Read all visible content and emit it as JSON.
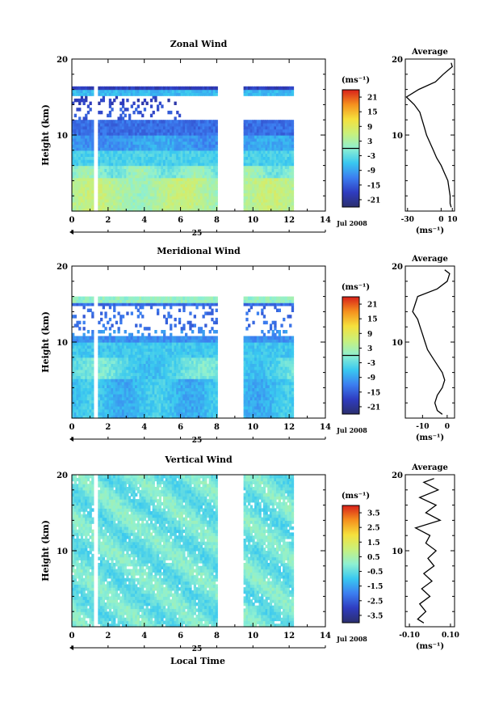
{
  "chart_data": [
    {
      "type": "heatmap",
      "title": "Zonal Wind",
      "ylabel": "Height (km)",
      "ylim": [
        0,
        20
      ],
      "y_ticks": [
        "10",
        "20"
      ],
      "xlim": [
        0,
        14
      ],
      "x_ticks": [
        "0",
        "2",
        "4",
        "6",
        "8",
        "10",
        "12",
        "14"
      ],
      "date_label": "25",
      "month_year_label": "Jul 2008",
      "colorbar": {
        "unit": "(ms⁻¹)",
        "ticks": [
          "21",
          "15",
          "9",
          "3",
          "-3",
          "-9",
          "-15",
          "-21"
        ],
        "range": [
          -24,
          24
        ]
      },
      "average_panel": {
        "title": "Average",
        "xlabel": "(ms⁻¹)",
        "x_ticks": [
          "-30",
          "0",
          "10"
        ],
        "xlim": [
          -32,
          12
        ],
        "y_ticks": [
          "10",
          "20"
        ],
        "profile_height": [
          0.5,
          1,
          2,
          3,
          4,
          5,
          6,
          7,
          8,
          9,
          10,
          11,
          12,
          13,
          14,
          15,
          16,
          17,
          18,
          19,
          19.5
        ],
        "profile_value": [
          9,
          8,
          8,
          7,
          6,
          3,
          0,
          -4,
          -7,
          -10,
          -13,
          -15,
          -17,
          -19,
          -24,
          -31,
          -20,
          -5,
          2,
          10,
          9
        ]
      }
    },
    {
      "type": "heatmap",
      "title": "Meridional Wind",
      "ylabel": "Height (km)",
      "ylim": [
        0,
        20
      ],
      "y_ticks": [
        "10",
        "20"
      ],
      "xlim": [
        0,
        14
      ],
      "x_ticks": [
        "0",
        "2",
        "4",
        "6",
        "8",
        "10",
        "12",
        "14"
      ],
      "date_label": "25",
      "month_year_label": "Jul 2008",
      "colorbar": {
        "unit": "(ms⁻¹)",
        "ticks": [
          "21",
          "15",
          "9",
          "3",
          "-3",
          "-9",
          "-15",
          "-21"
        ],
        "range": [
          -24,
          24
        ]
      },
      "average_panel": {
        "title": "Average",
        "xlabel": "(ms⁻¹)",
        "x_ticks": [
          "-10",
          "0"
        ],
        "xlim": [
          -17,
          3
        ],
        "y_ticks": [
          "10",
          "20"
        ],
        "profile_height": [
          0.5,
          1,
          2,
          3,
          4,
          5,
          6,
          7,
          8,
          9,
          10,
          11,
          12,
          13,
          14,
          15,
          16,
          17,
          18,
          19,
          19.5
        ],
        "profile_value": [
          -2,
          -4,
          -5,
          -4,
          -2,
          -1,
          -2,
          -4,
          -6,
          -8,
          -9,
          -10,
          -11,
          -12,
          -14,
          -13,
          -12,
          -4,
          0,
          1,
          -1
        ]
      }
    },
    {
      "type": "heatmap",
      "title": "Vertical Wind",
      "ylabel": "Height (km)",
      "xlabel": "Local Time",
      "ylim": [
        0,
        20
      ],
      "y_ticks": [
        "10",
        "20"
      ],
      "xlim": [
        0,
        14
      ],
      "x_ticks": [
        "0",
        "2",
        "4",
        "6",
        "8",
        "10",
        "12",
        "14"
      ],
      "date_label": "25",
      "month_year_label": "Jul 2008",
      "colorbar": {
        "unit": "(ms⁻¹)",
        "ticks": [
          "3.5",
          "2.5",
          "1.5",
          "0.5",
          "-0.5",
          "-1.5",
          "-2.5",
          "-3.5"
        ],
        "range": [
          -4,
          4
        ]
      },
      "average_panel": {
        "title": "Average",
        "xlabel": "(ms⁻¹)",
        "x_ticks": [
          "-0.10",
          "0.10"
        ],
        "xlim": [
          -0.12,
          0.12
        ],
        "y_ticks": [
          "10",
          "20"
        ],
        "profile_height": [
          0.5,
          1,
          2,
          3,
          4,
          5,
          6,
          7,
          8,
          9,
          10,
          11,
          12,
          13,
          14,
          15,
          16,
          17,
          18,
          19,
          19.5
        ],
        "profile_value": [
          -0.03,
          -0.06,
          -0.02,
          -0.05,
          0.0,
          -0.04,
          0.01,
          -0.03,
          0.02,
          -0.01,
          0.03,
          -0.02,
          0.0,
          -0.07,
          0.05,
          -0.02,
          0.03,
          -0.05,
          0.04,
          -0.03,
          0.02
        ]
      }
    }
  ]
}
